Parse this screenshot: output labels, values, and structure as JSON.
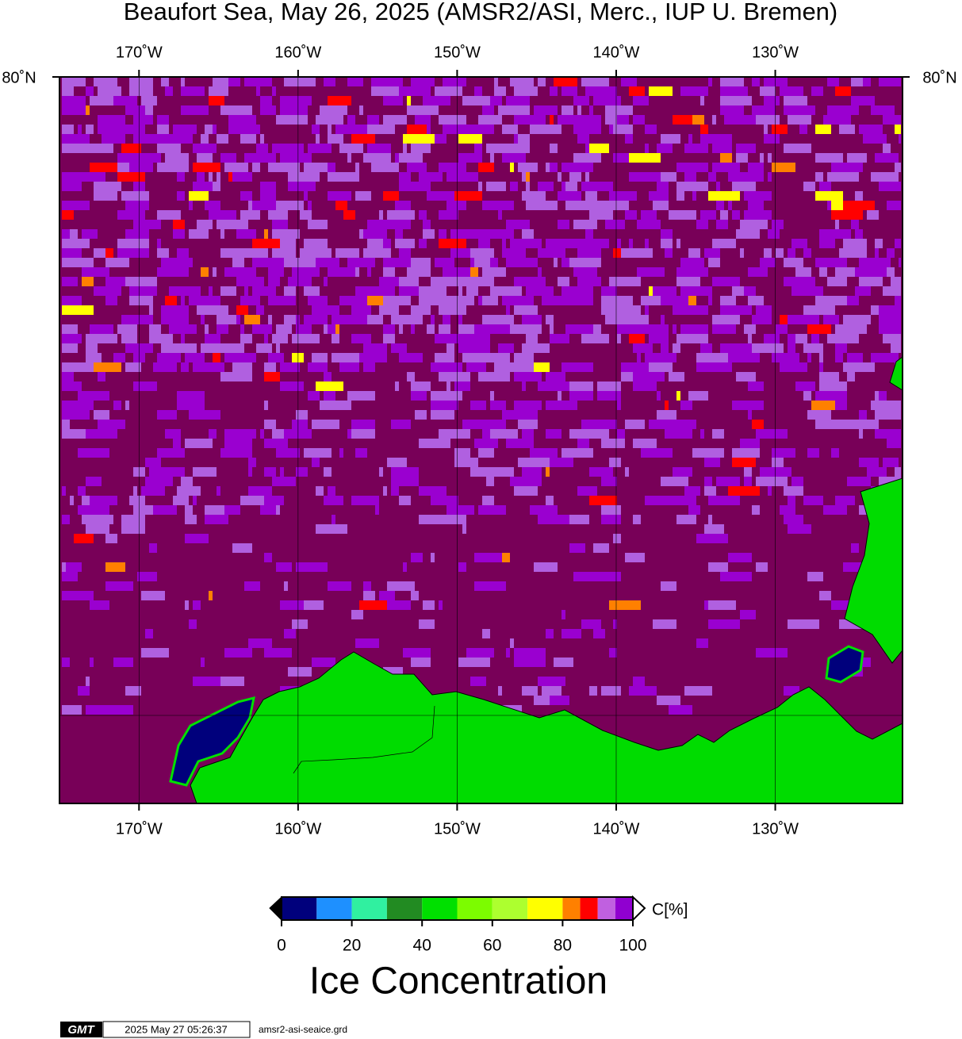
{
  "map": {
    "title": "Beaufort Sea, May 26, 2025 (AMSR2/ASI, Merc., IUP U. Bremen)",
    "lon_range": [
      -175,
      -122
    ],
    "lon_labels": [
      {
        "value": -170,
        "label": "170˚W"
      },
      {
        "value": -160,
        "label": "160˚W"
      },
      {
        "value": -150,
        "label": "150˚W"
      },
      {
        "value": -140,
        "label": "140˚W"
      },
      {
        "value": -130,
        "label": "130˚W"
      }
    ],
    "lat_label": "80˚N"
  },
  "colorbar": {
    "unit": "C[%]",
    "bounds": [
      0,
      10,
      20,
      30,
      40,
      50,
      60,
      70,
      80,
      85,
      90,
      95,
      100
    ],
    "colors": [
      "#00007c",
      "#1e90ff",
      "#30f0a0",
      "#228b22",
      "#00e000",
      "#7cfc00",
      "#adff2f",
      "#ffff00",
      "#ff8000",
      "#ff0000",
      "#c060e0",
      "#9000d0"
    ],
    "ticks": [
      0,
      20,
      40,
      60,
      80,
      100
    ],
    "label": "Ice Concentration"
  },
  "footer": {
    "logo": "GMT",
    "timestamp": "2025 May 27 05:26:37",
    "file": "amsr2-asi-seaice.grd"
  }
}
